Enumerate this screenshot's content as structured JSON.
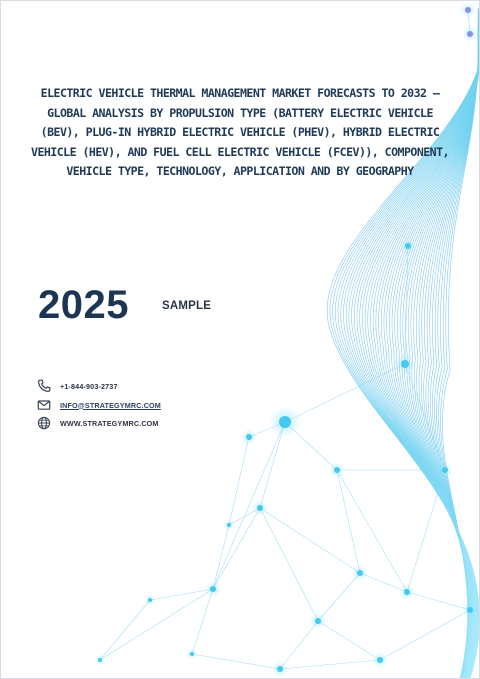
{
  "report": {
    "title": "Electric Vehicle Thermal Management Market Forecasts to 2032 – Global Analysis by Propulsion Type (Battery Electric Vehicle (BEV), Plug-in Hybrid Electric Vehicle (PHEV), Hybrid Electric Vehicle (HEV), and Fuel Cell Electric Vehicle (FCEV)), Component, Vehicle Type, Technology, Application and by Geography",
    "year": "2025",
    "badge": "SAMPLE"
  },
  "contact": {
    "phone": "+1-844-903-2737",
    "email": "INFO@STRATEGYMRC.COM",
    "website": "WWW.STRATEGYMRC.COM",
    "icons": {
      "phone": "phone-icon",
      "email": "envelope-icon",
      "website": "globe-icon"
    }
  },
  "theme": {
    "title_color": "#1f3a57",
    "year_color": "#1b3553",
    "accent": "#3fc3e8"
  }
}
